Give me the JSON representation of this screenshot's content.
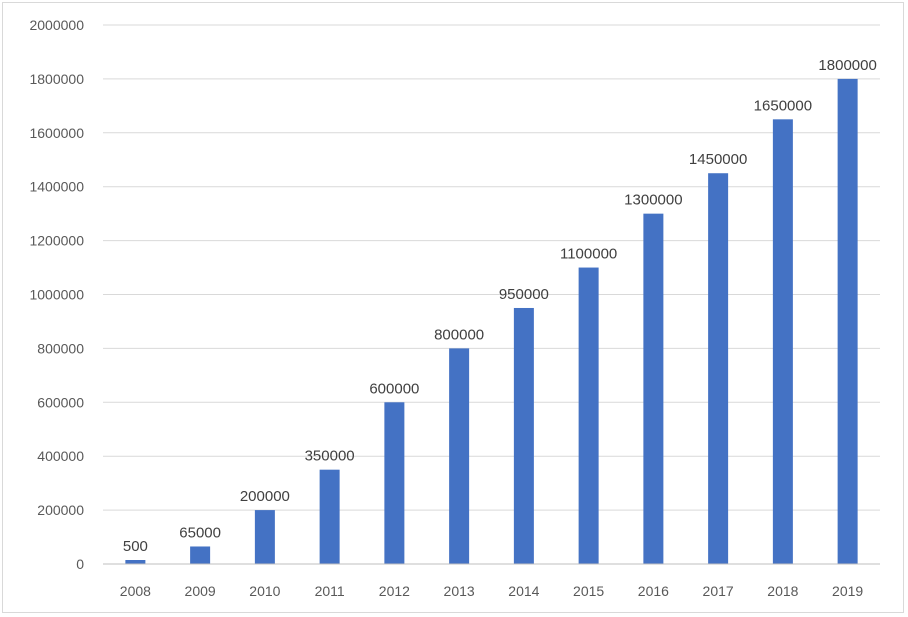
{
  "chart_data": {
    "type": "bar",
    "categories": [
      "2008",
      "2009",
      "2010",
      "2011",
      "2012",
      "2013",
      "2014",
      "2015",
      "2016",
      "2017",
      "2018",
      "2019"
    ],
    "values": [
      500,
      65000,
      200000,
      350000,
      600000,
      800000,
      950000,
      1100000,
      1300000,
      1450000,
      1650000,
      1800000
    ],
    "data_labels": [
      "500",
      "65000",
      "200000",
      "350000",
      "600000",
      "800000",
      "950000",
      "1100000",
      "1300000",
      "1450000",
      "1650000",
      "1800000"
    ],
    "y_ticks": [
      "0",
      "200000",
      "400000",
      "600000",
      "800000",
      "1000000",
      "1200000",
      "1400000",
      "1600000",
      "1800000",
      "2000000"
    ],
    "ylim": [
      0,
      2000000
    ],
    "title": "",
    "xlabel": "",
    "ylabel": "",
    "grid": true,
    "legend": "none",
    "bar_color": "#4472c4",
    "grid_color": "#d9d9d9"
  }
}
